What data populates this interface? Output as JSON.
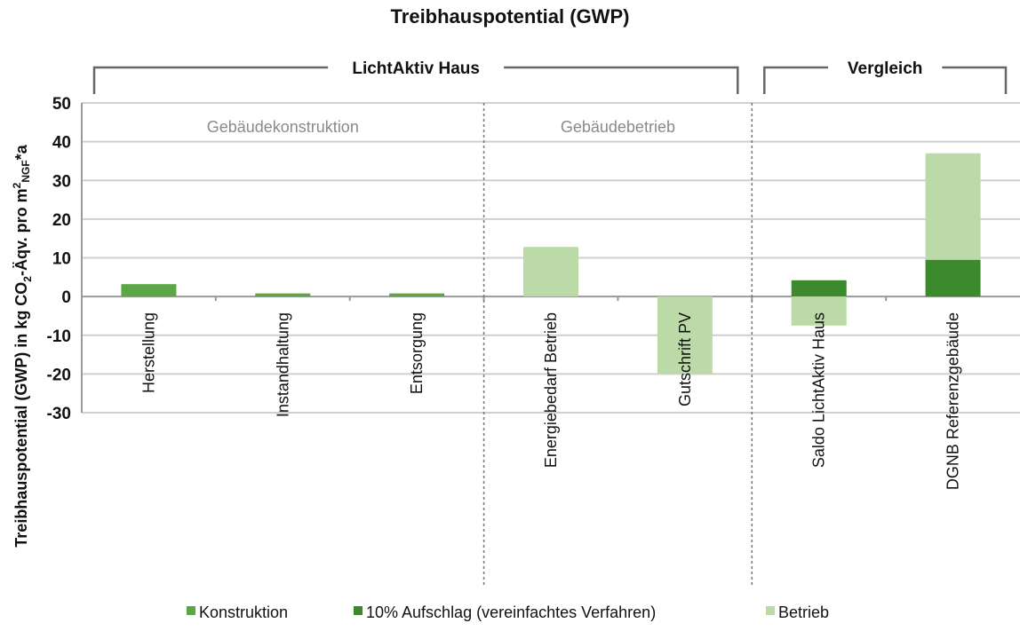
{
  "chart_data": {
    "type": "bar",
    "title": "Treibhauspotential (GWP)",
    "ylabel_parts": [
      "Treibhauspotential (GWP) in kg CO",
      "2",
      "-Äqv. pro m",
      "2",
      "NGF",
      "*a"
    ],
    "ylim": [
      -30,
      50
    ],
    "yticks": [
      50,
      40,
      30,
      20,
      10,
      0,
      -10,
      -20,
      -30
    ],
    "grid": true,
    "legend_position": "bottom",
    "categories": [
      "Herstellung",
      "Instandhaltung",
      "Entsorgung",
      "Energiebedarf Betrieb",
      "Gutschrift PV",
      "Saldo LichtAktiv Haus",
      "DGNB Referenzgebäude"
    ],
    "series": [
      {
        "name": "Konstruktion",
        "color": "#5aa744",
        "values": [
          3.2,
          0.8,
          0.8,
          0,
          0,
          0,
          0
        ]
      },
      {
        "name": "10% Aufschlag (vereinfachtes Verfahren)",
        "color": "#3d8a2e",
        "values": [
          0,
          0,
          0,
          0,
          0,
          4.2,
          9.5
        ]
      },
      {
        "name": "Betrieb",
        "color": "#bcdaa8",
        "values": [
          0,
          0,
          0,
          12.8,
          -20,
          -7.5,
          27.5
        ]
      }
    ],
    "section_labels": [
      "Gebäudekonstruktion",
      "Gebäudebetrieb",
      ""
    ],
    "section_sizes": [
      3,
      2,
      2
    ],
    "brackets": [
      {
        "label": "LichtAktiv Haus",
        "span": [
          0,
          4
        ]
      },
      {
        "label": "Vergleich",
        "span": [
          5,
          6
        ]
      }
    ]
  }
}
